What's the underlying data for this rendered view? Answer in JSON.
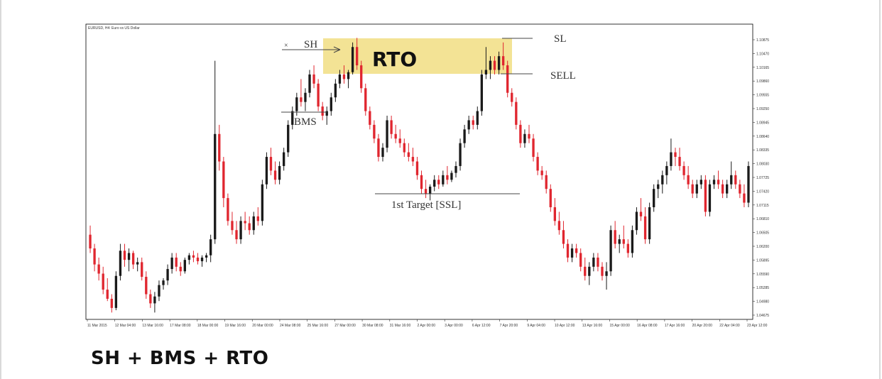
{
  "chart_data": {
    "type": "candlestick",
    "title": "EURUSD, H4: Euro vs US Dollar",
    "y_ticks": [
      "1.10875",
      "1.10470",
      "1.10165",
      "1.09860",
      "1.09555",
      "1.09250",
      "1.08945",
      "1.08640",
      "1.08335",
      "1.08030",
      "1.07725",
      "1.07420",
      "1.07115",
      "1.06810",
      "1.06505",
      "1.06200",
      "1.05895",
      "1.05590",
      "1.05285",
      "1.04980",
      "1.04675"
    ],
    "x_ticks": [
      "11 Mar 2015",
      "12 Mar 04:00",
      "13 Mar 16:00",
      "17 Mar 08:00",
      "18 Mar 00:00",
      "19 Mar 16:00",
      "20 Mar 00:00",
      "24 Mar 08:00",
      "25 Mar 16:00",
      "27 Mar 00:00",
      "30 Mar 08:00",
      "31 Mar 16:00",
      "2 Apr 00:00",
      "3 Apr 00:00",
      "6 Apr 12:00",
      "7 Apr 20:00",
      "9 Apr 04:00",
      "10 Apr 12:00",
      "13 Apr 16:00",
      "15 Apr 00:00",
      "16 Apr 08:00",
      "17 Apr 16:00",
      "20 Apr 20:00",
      "22 Apr 04:00",
      "23 Apr 12:00"
    ],
    "ylim": [
      1.0455,
      1.11
    ],
    "up_color": "#1a1a1a",
    "down_color": "#e0262f",
    "zone_color": "#f2e08a",
    "candles": [
      [
        1.064,
        1.066,
        1.06,
        1.061
      ],
      [
        1.061,
        1.062,
        1.056,
        1.0575
      ],
      [
        1.0575,
        1.059,
        1.054,
        1.0555
      ],
      [
        1.0555,
        1.057,
        1.051,
        1.052
      ],
      [
        1.052,
        1.0545,
        1.0495,
        1.05
      ],
      [
        1.05,
        1.051,
        1.047,
        1.048
      ],
      [
        1.048,
        1.056,
        1.0475,
        1.055
      ],
      [
        1.055,
        1.062,
        1.054,
        1.0605
      ],
      [
        1.0605,
        1.062,
        1.057,
        1.0585
      ],
      [
        1.0585,
        1.061,
        1.056,
        1.06
      ],
      [
        1.06,
        1.0605,
        1.0565,
        1.0575
      ],
      [
        1.0575,
        1.059,
        1.056,
        1.058
      ],
      [
        1.058,
        1.059,
        1.054,
        1.0548
      ],
      [
        1.0548,
        1.056,
        1.05,
        1.051
      ],
      [
        1.051,
        1.052,
        1.048,
        1.049
      ],
      [
        1.049,
        1.0515,
        1.047,
        1.0505
      ],
      [
        1.0505,
        1.054,
        1.0495,
        1.053
      ],
      [
        1.053,
        1.0545,
        1.052,
        1.054
      ],
      [
        1.054,
        1.0575,
        1.053,
        1.0565
      ],
      [
        1.0565,
        1.06,
        1.0555,
        1.059
      ],
      [
        1.059,
        1.06,
        1.056,
        1.057
      ],
      [
        1.057,
        1.058,
        1.055,
        1.056
      ],
      [
        1.056,
        1.059,
        1.0555,
        1.0585
      ],
      [
        1.0585,
        1.06,
        1.0575,
        1.0595
      ],
      [
        1.0595,
        1.0605,
        1.058,
        1.059
      ],
      [
        1.059,
        1.06,
        1.0575,
        1.0582
      ],
      [
        1.0582,
        1.0595,
        1.057,
        1.059
      ],
      [
        1.059,
        1.06,
        1.058,
        1.0595
      ],
      [
        1.0595,
        1.064,
        1.058,
        1.063
      ],
      [
        1.063,
        1.102,
        1.062,
        1.086
      ],
      [
        1.086,
        1.088,
        1.078,
        1.08
      ],
      [
        1.08,
        1.081,
        1.07,
        1.072
      ],
      [
        1.072,
        1.073,
        1.066,
        1.067
      ],
      [
        1.067,
        1.069,
        1.064,
        1.065
      ],
      [
        1.065,
        1.067,
        1.062,
        1.063
      ],
      [
        1.063,
        1.068,
        1.062,
        1.067
      ],
      [
        1.067,
        1.069,
        1.065,
        1.0665
      ],
      [
        1.0665,
        1.068,
        1.064,
        1.065
      ],
      [
        1.065,
        1.069,
        1.064,
        1.068
      ],
      [
        1.068,
        1.07,
        1.066,
        1.067
      ],
      [
        1.067,
        1.076,
        1.066,
        1.075
      ],
      [
        1.075,
        1.082,
        1.074,
        1.081
      ],
      [
        1.081,
        1.083,
        1.077,
        1.078
      ],
      [
        1.078,
        1.08,
        1.075,
        1.076
      ],
      [
        1.076,
        1.08,
        1.075,
        1.079
      ],
      [
        1.079,
        1.083,
        1.078,
        1.082
      ],
      [
        1.082,
        1.089,
        1.081,
        1.088
      ],
      [
        1.088,
        1.092,
        1.087,
        1.091
      ],
      [
        1.091,
        1.095,
        1.09,
        1.094
      ],
      [
        1.094,
        1.098,
        1.092,
        1.093
      ],
      [
        1.093,
        1.096,
        1.091,
        1.095
      ],
      [
        1.095,
        1.1,
        1.094,
        1.099
      ],
      [
        1.099,
        1.101,
        1.096,
        1.097
      ],
      [
        1.097,
        1.098,
        1.091,
        1.092
      ],
      [
        1.092,
        1.093,
        1.089,
        1.09
      ],
      [
        1.09,
        1.092,
        1.088,
        1.091
      ],
      [
        1.091,
        1.095,
        1.09,
        1.094
      ],
      [
        1.094,
        1.098,
        1.093,
        1.097
      ],
      [
        1.097,
        1.1,
        1.096,
        1.099
      ],
      [
        1.099,
        1.101,
        1.097,
        1.098
      ],
      [
        1.098,
        1.1,
        1.096,
        1.0995
      ],
      [
        1.0995,
        1.106,
        1.099,
        1.105
      ],
      [
        1.105,
        1.107,
        1.1,
        1.101
      ],
      [
        1.101,
        1.102,
        1.095,
        1.096
      ],
      [
        1.096,
        1.097,
        1.09,
        1.091
      ],
      [
        1.091,
        1.092,
        1.087,
        1.088
      ],
      [
        1.088,
        1.089,
        1.084,
        1.085
      ],
      [
        1.085,
        1.086,
        1.08,
        1.081
      ],
      [
        1.081,
        1.084,
        1.08,
        1.083
      ],
      [
        1.083,
        1.09,
        1.082,
        1.089
      ],
      [
        1.089,
        1.09,
        1.085,
        1.086
      ],
      [
        1.086,
        1.088,
        1.084,
        1.085
      ],
      [
        1.085,
        1.087,
        1.083,
        1.084
      ],
      [
        1.084,
        1.085,
        1.081,
        1.082
      ],
      [
        1.082,
        1.084,
        1.08,
        1.081
      ],
      [
        1.081,
        1.083,
        1.079,
        1.08
      ],
      [
        1.08,
        1.081,
        1.076,
        1.077
      ],
      [
        1.077,
        1.078,
        1.073,
        1.074
      ],
      [
        1.074,
        1.076,
        1.072,
        1.073
      ],
      [
        1.073,
        1.075,
        1.0715,
        1.0745
      ],
      [
        1.0745,
        1.077,
        1.0735,
        1.076
      ],
      [
        1.076,
        1.077,
        1.074,
        1.075
      ],
      [
        1.075,
        1.078,
        1.0745,
        1.077
      ],
      [
        1.077,
        1.079,
        1.075,
        1.076
      ],
      [
        1.076,
        1.078,
        1.0755,
        1.0775
      ],
      [
        1.0775,
        1.08,
        1.0765,
        1.079
      ],
      [
        1.079,
        1.085,
        1.078,
        1.084
      ],
      [
        1.084,
        1.088,
        1.083,
        1.087
      ],
      [
        1.087,
        1.09,
        1.086,
        1.089
      ],
      [
        1.089,
        1.09,
        1.087,
        1.088
      ],
      [
        1.088,
        1.092,
        1.087,
        1.091
      ],
      [
        1.091,
        1.1,
        1.09,
        1.099
      ],
      [
        1.099,
        1.105,
        1.098,
        1.1
      ],
      [
        1.1,
        1.103,
        1.098,
        1.102
      ],
      [
        1.102,
        1.103,
        1.099,
        1.1
      ],
      [
        1.1,
        1.104,
        1.099,
        1.103
      ],
      [
        1.103,
        1.106,
        1.1,
        1.101
      ],
      [
        1.101,
        1.102,
        1.094,
        1.095
      ],
      [
        1.095,
        1.096,
        1.092,
        1.093
      ],
      [
        1.093,
        1.094,
        1.087,
        1.088
      ],
      [
        1.088,
        1.089,
        1.083,
        1.084
      ],
      [
        1.084,
        1.087,
        1.083,
        1.086
      ],
      [
        1.086,
        1.088,
        1.084,
        1.085
      ],
      [
        1.085,
        1.086,
        1.08,
        1.081
      ],
      [
        1.081,
        1.082,
        1.077,
        1.078
      ],
      [
        1.078,
        1.079,
        1.076,
        1.077
      ],
      [
        1.077,
        1.078,
        1.073,
        1.074
      ],
      [
        1.074,
        1.075,
        1.069,
        1.07
      ],
      [
        1.07,
        1.072,
        1.066,
        1.067
      ],
      [
        1.067,
        1.069,
        1.064,
        1.065
      ],
      [
        1.065,
        1.067,
        1.061,
        1.062
      ],
      [
        1.062,
        1.063,
        1.058,
        1.059
      ],
      [
        1.059,
        1.062,
        1.058,
        1.061
      ],
      [
        1.061,
        1.062,
        1.059,
        1.06
      ],
      [
        1.06,
        1.061,
        1.056,
        1.057
      ],
      [
        1.057,
        1.059,
        1.054,
        1.055
      ],
      [
        1.055,
        1.058,
        1.053,
        1.057
      ],
      [
        1.057,
        1.06,
        1.056,
        1.059
      ],
      [
        1.059,
        1.06,
        1.056,
        1.057
      ],
      [
        1.057,
        1.058,
        1.054,
        1.055
      ],
      [
        1.055,
        1.058,
        1.052,
        1.056
      ],
      [
        1.056,
        1.066,
        1.055,
        1.065
      ],
      [
        1.065,
        1.067,
        1.061,
        1.062
      ],
      [
        1.062,
        1.064,
        1.06,
        1.063
      ],
      [
        1.063,
        1.066,
        1.061,
        1.062
      ],
      [
        1.062,
        1.063,
        1.059,
        1.06
      ],
      [
        1.06,
        1.066,
        1.059,
        1.065
      ],
      [
        1.065,
        1.07,
        1.064,
        1.069
      ],
      [
        1.069,
        1.072,
        1.067,
        1.068
      ],
      [
        1.068,
        1.07,
        1.062,
        1.063
      ],
      [
        1.063,
        1.071,
        1.062,
        1.07
      ],
      [
        1.07,
        1.075,
        1.069,
        1.074
      ],
      [
        1.074,
        1.076,
        1.072,
        1.075
      ],
      [
        1.075,
        1.078,
        1.073,
        1.077
      ],
      [
        1.077,
        1.08,
        1.075,
        1.079
      ],
      [
        1.079,
        1.085,
        1.078,
        1.082
      ],
      [
        1.082,
        1.083,
        1.079,
        1.081
      ],
      [
        1.081,
        1.083,
        1.078,
        1.079
      ],
      [
        1.079,
        1.08,
        1.076,
        1.077
      ],
      [
        1.077,
        1.079,
        1.074,
        1.075
      ],
      [
        1.075,
        1.076,
        1.072,
        1.073
      ],
      [
        1.073,
        1.076,
        1.072,
        1.075
      ],
      [
        1.075,
        1.077,
        1.074,
        1.076
      ],
      [
        1.076,
        1.077,
        1.068,
        1.069
      ],
      [
        1.069,
        1.076,
        1.068,
        1.075
      ],
      [
        1.075,
        1.077,
        1.074,
        1.076
      ],
      [
        1.076,
        1.078,
        1.074,
        1.075
      ],
      [
        1.075,
        1.076,
        1.072,
        1.073
      ],
      [
        1.073,
        1.076,
        1.072,
        1.075
      ],
      [
        1.075,
        1.08,
        1.074,
        1.077
      ],
      [
        1.077,
        1.078,
        1.074,
        1.075
      ],
      [
        1.075,
        1.076,
        1.072,
        1.073
      ],
      [
        1.073,
        1.075,
        1.07,
        1.071
      ],
      [
        1.071,
        1.08,
        1.07,
        1.079
      ]
    ]
  },
  "chart": {
    "title": "EURUSD, H4: Euro vs US Dollar"
  },
  "annotations": {
    "sh": "SH",
    "x_mark": "×",
    "bms": "BMS",
    "rto": "RTO",
    "sl": "SL",
    "sell": "SELL",
    "target": "1st Target [SSL]"
  },
  "caption": "SH + BMS + RTO"
}
